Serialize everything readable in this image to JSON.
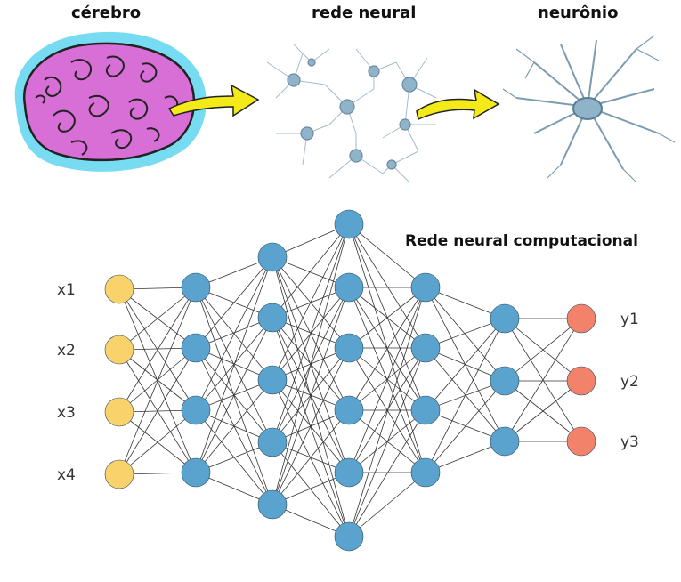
{
  "titles": {
    "brain": "cérebro",
    "network": "rede neural",
    "neuron": "neurônio",
    "computational": "Rede neural computacional"
  },
  "network": {
    "layer_sizes": [
      4,
      4,
      5,
      6,
      4,
      3,
      3
    ],
    "input_labels": [
      "x1",
      "x2",
      "x3",
      "x4"
    ],
    "output_labels": [
      "y1",
      "y2",
      "y3"
    ]
  },
  "colors": {
    "input_node": "#f9d26b",
    "hidden_node": "#5ba3cf",
    "output_node": "#f2826a",
    "edge": "#333333",
    "arrow": "#f4ea18",
    "brain": "#d86fd6",
    "brain_halo": "#5fd6f0",
    "neuron": "#8fb3c9"
  }
}
